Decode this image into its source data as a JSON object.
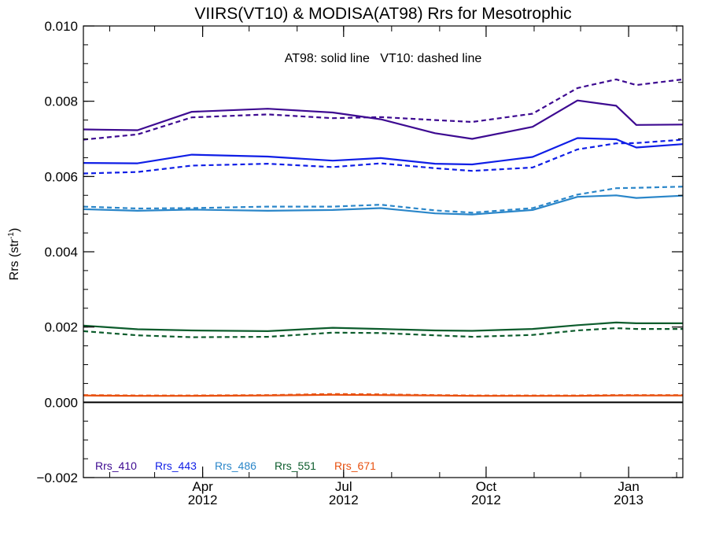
{
  "chart_data": {
    "type": "line",
    "title": "VIIRS(VT10) & MODISA(AT98)  Rrs for Mesotrophic",
    "subtitle": "AT98: solid line   VT10: dashed line",
    "ylabel_main": "Rrs (str",
    "ylabel_sup": "-1",
    "ylabel_close": ")",
    "xlabel": "",
    "ylim": [
      -0.002,
      0.01
    ],
    "yticks": [
      -0.002,
      0.0,
      0.002,
      0.004,
      0.006,
      0.008,
      0.01
    ],
    "ytick_labels": [
      "−0.002",
      "0.000",
      "0.002",
      "0.004",
      "0.006",
      "0.008",
      "0.010"
    ],
    "yminor_step": 0.0005,
    "xlim": [
      "2012-01-15",
      "2013-02-05"
    ],
    "xticks": [
      {
        "date": "2012-04-01",
        "month": "Apr",
        "year": "2012"
      },
      {
        "date": "2012-07-01",
        "month": "Jul",
        "year": "2012"
      },
      {
        "date": "2012-10-01",
        "month": "Oct",
        "year": "2012"
      },
      {
        "date": "2013-01-01",
        "month": "Jan",
        "year": "2013"
      }
    ],
    "x": [
      "2012-01-15",
      "2012-02-19",
      "2012-03-25",
      "2012-05-13",
      "2012-06-24",
      "2012-07-25",
      "2012-08-29",
      "2012-09-22",
      "2012-10-31",
      "2012-11-29",
      "2012-12-24",
      "2013-01-06",
      "2013-02-05"
    ],
    "zero_line": 0.0,
    "grid": false,
    "legend_position": "bottom-left",
    "series": [
      {
        "name": "Rrs_410",
        "color": "#3d0a91",
        "style": "solid",
        "values": [
          0.00725,
          0.00723,
          0.00772,
          0.0078,
          0.0077,
          0.00752,
          0.00715,
          0.007,
          0.00732,
          0.00802,
          0.00788,
          0.00737,
          0.00738
        ]
      },
      {
        "name": "Rrs_410",
        "color": "#3d0a91",
        "style": "dashed",
        "values": [
          0.00698,
          0.00712,
          0.00757,
          0.00765,
          0.00755,
          0.00758,
          0.0075,
          0.00745,
          0.00767,
          0.00835,
          0.00858,
          0.00843,
          0.00858
        ]
      },
      {
        "name": "Rrs_443",
        "color": "#0f1ee6",
        "style": "solid",
        "values": [
          0.00636,
          0.00635,
          0.00658,
          0.00653,
          0.00642,
          0.00649,
          0.00634,
          0.00632,
          0.00652,
          0.00702,
          0.00699,
          0.00677,
          0.00686
        ]
      },
      {
        "name": "Rrs_443",
        "color": "#0f1ee6",
        "style": "dashed",
        "values": [
          0.00608,
          0.00612,
          0.00629,
          0.00634,
          0.00625,
          0.00635,
          0.00622,
          0.00615,
          0.00624,
          0.00672,
          0.00688,
          0.00689,
          0.00698
        ]
      },
      {
        "name": "Rrs_486",
        "color": "#2a86c9",
        "style": "solid",
        "values": [
          0.00513,
          0.00509,
          0.00512,
          0.00509,
          0.00511,
          0.00516,
          0.00502,
          0.00499,
          0.00511,
          0.00546,
          0.0055,
          0.00543,
          0.00549
        ]
      },
      {
        "name": "Rrs_486",
        "color": "#2a86c9",
        "style": "dashed",
        "values": [
          0.0052,
          0.00515,
          0.00516,
          0.0052,
          0.0052,
          0.00525,
          0.0051,
          0.00504,
          0.00516,
          0.00552,
          0.00569,
          0.0057,
          0.00573
        ]
      },
      {
        "name": "Rrs_551",
        "color": "#0c5c2c",
        "style": "solid",
        "values": [
          0.00204,
          0.00194,
          0.00191,
          0.00189,
          0.00198,
          0.00195,
          0.00191,
          0.0019,
          0.00195,
          0.00205,
          0.00212,
          0.0021,
          0.0021
        ]
      },
      {
        "name": "Rrs_551",
        "color": "#0c5c2c",
        "style": "dashed",
        "values": [
          0.00189,
          0.00178,
          0.00173,
          0.00174,
          0.00185,
          0.00184,
          0.00178,
          0.00174,
          0.00179,
          0.00191,
          0.00197,
          0.00195,
          0.00195
        ]
      },
      {
        "name": "Rrs_671",
        "color": "#e8500f",
        "style": "solid",
        "values": [
          0.00018,
          0.00017,
          0.00017,
          0.00018,
          0.0002,
          0.00019,
          0.00018,
          0.00017,
          0.00017,
          0.00017,
          0.00018,
          0.00018,
          0.00018
        ]
      },
      {
        "name": "Rrs_671",
        "color": "#e8500f",
        "style": "dashed",
        "values": [
          0.00019,
          0.00018,
          0.00018,
          0.00019,
          0.00022,
          0.00021,
          0.00019,
          0.00018,
          0.00018,
          0.00018,
          0.00019,
          0.00019,
          0.00019
        ]
      }
    ],
    "legend": [
      {
        "label": "Rrs_410",
        "color": "#3d0a91"
      },
      {
        "label": "Rrs_443",
        "color": "#0f1ee6"
      },
      {
        "label": "Rrs_486",
        "color": "#2a86c9"
      },
      {
        "label": "Rrs_551",
        "color": "#0c5c2c"
      },
      {
        "label": "Rrs_671",
        "color": "#e8500f"
      }
    ]
  }
}
